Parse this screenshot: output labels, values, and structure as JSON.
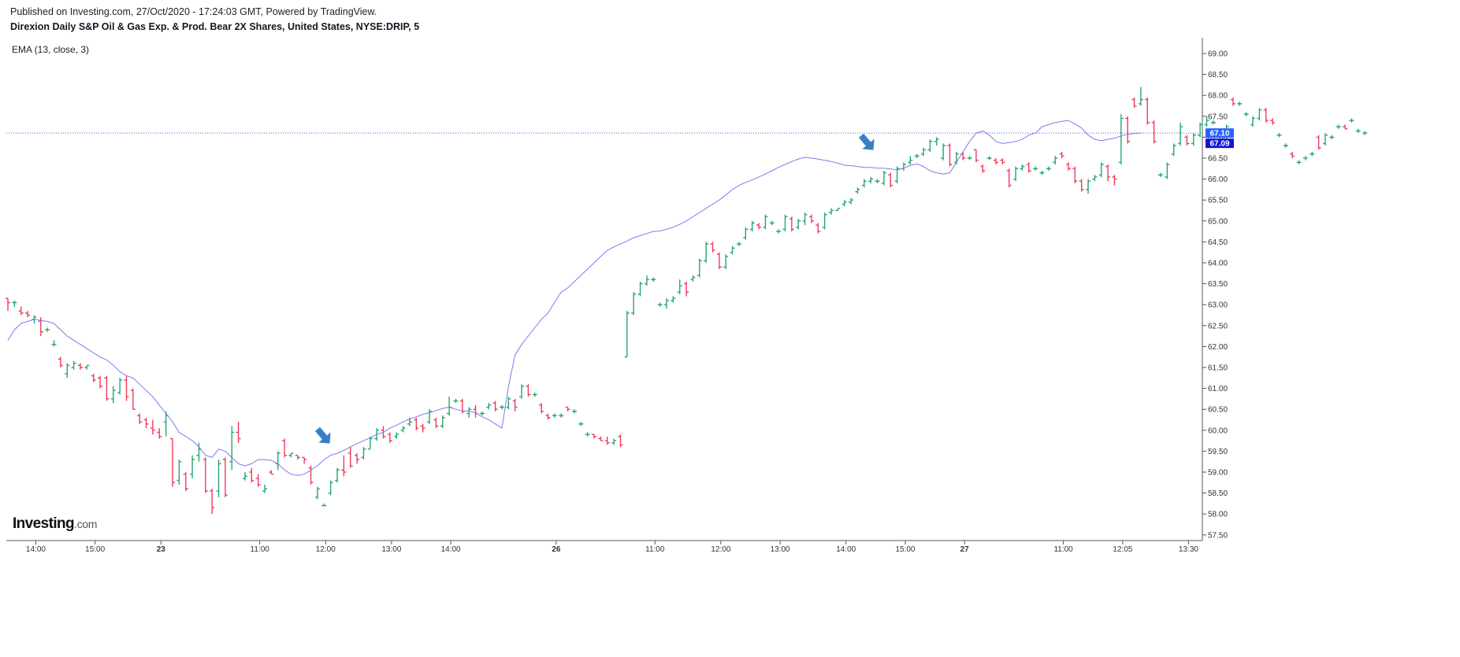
{
  "header": {
    "published": "Published on Investing.com, 27/Oct/2020 - 17:24:03 GMT, Powered by TradingView.",
    "symbol": "Direxion Daily S&P Oil & Gas Exp. & Prod. Bear 2X Shares, United States, NYSE:DRIP, 5"
  },
  "indicator_label": "EMA (13, close, 3)",
  "logo": {
    "main": "Investing",
    "domain": ".com"
  },
  "colors": {
    "up": "#26a672",
    "down": "#ef3b5a",
    "ema": "#7b7bef",
    "price_line": "#2962ff",
    "badge_last": "#2962ff",
    "badge_ema": "#1515d0",
    "axis": "#555555"
  },
  "price_badges": {
    "last": "67.10",
    "ema": "67.09"
  },
  "chart_data": {
    "type": "ohlc",
    "ylim": [
      57.5,
      69.0
    ],
    "y_ticks": [
      "69.00",
      "68.50",
      "68.00",
      "67.50",
      "67.00",
      "66.50",
      "66.00",
      "65.50",
      "65.00",
      "64.50",
      "64.00",
      "63.50",
      "63.00",
      "62.50",
      "62.00",
      "61.50",
      "61.00",
      "60.50",
      "60.00",
      "59.50",
      "59.00",
      "58.50",
      "58.00",
      "57.50"
    ],
    "x_ticks": [
      {
        "label": "14:00",
        "bar": 4
      },
      {
        "label": "15:00",
        "bar": 13
      },
      {
        "label": "23",
        "bar": 23,
        "bold": true
      },
      {
        "label": "11:00",
        "bar": 38
      },
      {
        "label": "12:00",
        "bar": 48
      },
      {
        "label": "13:00",
        "bar": 58
      },
      {
        "label": "14:00",
        "bar": 67
      },
      {
        "label": "26",
        "bar": 83,
        "bold": true
      },
      {
        "label": "11:00",
        "bar": 98
      },
      {
        "label": "12:00",
        "bar": 108
      },
      {
        "label": "13:00",
        "bar": 117
      },
      {
        "label": "14:00",
        "bar": 127
      },
      {
        "label": "15:00",
        "bar": 136
      },
      {
        "label": "27",
        "bar": 145,
        "bold": true
      },
      {
        "label": "11:00",
        "bar": 160
      },
      {
        "label": "12:05",
        "bar": 169
      },
      {
        "label": "13:30",
        "bar": 179
      }
    ],
    "bars": [
      [
        63.15,
        63.15,
        62.85,
        63.05
      ],
      [
        63.05,
        63.1,
        62.95,
        63.05
      ],
      [
        62.85,
        62.95,
        62.75,
        62.8
      ],
      [
        62.8,
        62.85,
        62.7,
        62.75
      ],
      [
        62.65,
        62.75,
        62.55,
        62.7
      ],
      [
        62.6,
        62.7,
        62.25,
        62.35
      ],
      [
        62.4,
        62.45,
        62.35,
        62.4
      ],
      [
        62.05,
        62.15,
        62.0,
        62.05
      ],
      [
        61.7,
        61.75,
        61.5,
        61.55
      ],
      [
        61.35,
        61.6,
        61.25,
        61.55
      ],
      [
        61.5,
        61.65,
        61.45,
        61.6
      ],
      [
        61.55,
        61.6,
        61.45,
        61.5
      ],
      [
        61.5,
        61.55,
        61.45,
        61.55
      ],
      [
        61.3,
        61.35,
        61.15,
        61.2
      ],
      [
        61.25,
        61.3,
        61.0,
        61.05
      ],
      [
        61.25,
        61.3,
        60.7,
        60.75
      ],
      [
        60.75,
        61.05,
        60.65,
        60.95
      ],
      [
        60.9,
        61.25,
        60.85,
        61.2
      ],
      [
        61.2,
        61.3,
        60.7,
        60.8
      ],
      [
        60.95,
        61.0,
        60.5,
        60.5
      ],
      [
        60.35,
        60.4,
        60.15,
        60.2
      ],
      [
        60.25,
        60.3,
        60.05,
        60.15
      ],
      [
        60.05,
        60.25,
        59.9,
        60.0
      ],
      [
        59.95,
        60.05,
        59.8,
        59.85
      ],
      [
        60.2,
        60.45,
        59.85,
        60.35
      ],
      [
        59.8,
        59.8,
        58.65,
        58.75
      ],
      [
        58.8,
        59.3,
        58.7,
        59.25
      ],
      [
        58.95,
        59.0,
        58.55,
        58.6
      ],
      [
        58.95,
        59.4,
        58.85,
        59.3
      ],
      [
        59.4,
        59.7,
        59.25,
        59.55
      ],
      [
        59.3,
        59.35,
        58.5,
        58.55
      ],
      [
        58.55,
        58.6,
        58.0,
        58.15
      ],
      [
        58.55,
        59.3,
        58.4,
        59.2
      ],
      [
        59.3,
        59.35,
        58.4,
        58.45
      ],
      [
        59.25,
        60.1,
        59.05,
        59.95
      ],
      [
        59.95,
        60.2,
        59.7,
        59.8
      ],
      [
        58.85,
        59.0,
        58.8,
        58.9
      ],
      [
        59.0,
        59.1,
        58.75,
        58.8
      ],
      [
        58.85,
        58.95,
        58.65,
        58.7
      ],
      [
        58.55,
        58.7,
        58.5,
        58.6
      ],
      [
        59.0,
        59.05,
        58.95,
        58.95
      ],
      [
        59.2,
        59.5,
        59.05,
        59.45
      ],
      [
        59.75,
        59.8,
        59.35,
        59.4
      ],
      [
        59.4,
        59.45,
        59.35,
        59.45
      ],
      [
        59.4,
        59.4,
        59.3,
        59.35
      ],
      [
        59.35,
        59.35,
        59.2,
        59.3
      ],
      [
        59.1,
        59.15,
        58.7,
        58.75
      ],
      [
        58.4,
        58.65,
        58.35,
        58.6
      ],
      [
        58.2,
        58.25,
        58.2,
        58.2
      ],
      [
        58.5,
        58.8,
        58.45,
        58.75
      ],
      [
        58.8,
        59.1,
        58.75,
        59.05
      ],
      [
        59.05,
        59.4,
        58.9,
        59.0
      ],
      [
        59.45,
        59.6,
        59.1,
        59.15
      ],
      [
        59.4,
        59.45,
        59.2,
        59.3
      ],
      [
        59.35,
        59.6,
        59.3,
        59.55
      ],
      [
        59.55,
        59.85,
        59.55,
        59.8
      ],
      [
        59.8,
        60.05,
        59.75,
        60.0
      ],
      [
        60.0,
        60.1,
        59.8,
        59.85
      ],
      [
        59.9,
        59.95,
        59.7,
        59.75
      ],
      [
        59.85,
        59.95,
        59.8,
        59.9
      ],
      [
        60.0,
        60.1,
        59.95,
        60.05
      ],
      [
        60.15,
        60.3,
        60.1,
        60.2
      ],
      [
        60.25,
        60.3,
        60.0,
        60.05
      ],
      [
        60.1,
        60.15,
        59.95,
        60.05
      ],
      [
        60.2,
        60.5,
        60.15,
        60.45
      ],
      [
        60.25,
        60.3,
        60.05,
        60.1
      ],
      [
        60.1,
        60.35,
        60.05,
        60.3
      ],
      [
        60.4,
        60.8,
        60.35,
        60.55
      ],
      [
        60.7,
        60.75,
        60.65,
        60.7
      ],
      [
        60.7,
        60.75,
        60.4,
        60.45
      ],
      [
        60.4,
        60.55,
        60.3,
        60.5
      ],
      [
        60.5,
        60.6,
        60.3,
        60.4
      ],
      [
        60.4,
        60.45,
        60.35,
        60.4
      ],
      [
        60.55,
        60.65,
        60.5,
        60.6
      ],
      [
        60.65,
        60.7,
        60.45,
        60.5
      ],
      [
        60.55,
        60.6,
        60.5,
        60.55
      ],
      [
        60.55,
        60.8,
        60.5,
        60.75
      ],
      [
        60.7,
        60.75,
        60.45,
        60.55
      ],
      [
        60.8,
        61.1,
        60.75,
        61.05
      ],
      [
        61.05,
        61.1,
        60.8,
        60.85
      ],
      [
        60.85,
        60.9,
        60.8,
        60.85
      ],
      [
        60.6,
        60.65,
        60.4,
        60.45
      ],
      [
        60.35,
        60.4,
        60.25,
        60.3
      ],
      [
        60.35,
        60.4,
        60.3,
        60.35
      ],
      [
        60.35,
        60.4,
        60.3,
        60.35
      ],
      [
        60.55,
        60.55,
        60.45,
        60.5
      ],
      [
        60.45,
        60.5,
        60.4,
        60.45
      ],
      [
        60.15,
        60.2,
        60.1,
        60.15
      ],
      [
        59.9,
        59.95,
        59.85,
        59.9
      ],
      [
        59.9,
        59.9,
        59.8,
        59.85
      ],
      [
        59.8,
        59.85,
        59.75,
        59.75
      ],
      [
        59.75,
        59.85,
        59.65,
        59.7
      ],
      [
        59.7,
        59.8,
        59.65,
        59.75
      ],
      [
        59.85,
        59.9,
        59.6,
        59.65
      ]
    ],
    "bars_day26": [
      [
        61.75,
        62.85,
        61.75,
        62.8
      ],
      [
        62.8,
        63.3,
        62.75,
        63.25
      ],
      [
        63.25,
        63.55,
        63.2,
        63.5
      ],
      [
        63.5,
        63.7,
        63.45,
        63.6
      ],
      [
        63.6,
        63.65,
        63.55,
        63.6
      ],
      [
        63.0,
        63.05,
        62.95,
        63.0
      ],
      [
        63.0,
        63.15,
        62.9,
        63.1
      ],
      [
        63.1,
        63.2,
        63.05,
        63.15
      ],
      [
        63.3,
        63.6,
        63.25,
        63.45
      ],
      [
        63.5,
        63.55,
        63.2,
        63.3
      ],
      [
        63.6,
        63.7,
        63.55,
        63.65
      ],
      [
        63.7,
        64.1,
        63.65,
        64.05
      ],
      [
        64.05,
        64.5,
        64.0,
        64.45
      ],
      [
        64.45,
        64.5,
        64.25,
        64.3
      ],
      [
        64.2,
        64.25,
        63.85,
        63.9
      ],
      [
        63.9,
        64.2,
        63.85,
        64.15
      ],
      [
        64.25,
        64.4,
        64.2,
        64.35
      ],
      [
        64.45,
        64.5,
        64.4,
        64.45
      ],
      [
        64.6,
        64.85,
        64.55,
        64.8
      ],
      [
        64.8,
        65.0,
        64.75,
        64.95
      ],
      [
        64.9,
        64.95,
        64.8,
        64.85
      ],
      [
        64.85,
        65.15,
        64.8,
        65.1
      ],
      [
        64.95,
        65.0,
        64.9,
        64.95
      ],
      [
        64.75,
        64.8,
        64.7,
        64.75
      ],
      [
        64.8,
        65.15,
        64.75,
        65.1
      ],
      [
        65.05,
        65.1,
        64.75,
        64.8
      ],
      [
        64.85,
        65.05,
        64.8,
        65.0
      ],
      [
        65.0,
        65.2,
        64.9,
        65.15
      ],
      [
        65.1,
        65.15,
        64.95,
        65.0
      ],
      [
        64.9,
        64.95,
        64.7,
        64.75
      ],
      [
        64.85,
        65.2,
        64.8,
        65.15
      ],
      [
        65.2,
        65.3,
        65.15,
        65.25
      ],
      [
        65.25,
        65.3,
        65.25,
        65.3
      ],
      [
        65.4,
        65.5,
        65.35,
        65.45
      ],
      [
        65.45,
        65.55,
        65.4,
        65.5
      ],
      [
        65.7,
        65.8,
        65.65,
        65.75
      ],
      [
        65.85,
        66.0,
        65.8,
        65.95
      ],
      [
        65.95,
        66.05,
        65.9,
        66.0
      ],
      [
        65.95,
        66.0,
        65.9,
        65.95
      ],
      [
        65.9,
        66.2,
        65.85,
        66.15
      ],
      [
        66.1,
        66.15,
        65.8,
        65.85
      ],
      [
        65.95,
        66.3,
        65.9,
        66.25
      ],
      [
        66.25,
        66.4,
        66.2,
        66.35
      ],
      [
        66.4,
        66.55,
        66.35,
        66.45
      ],
      [
        66.55,
        66.6,
        66.5,
        66.55
      ],
      [
        66.6,
        66.75,
        66.55,
        66.7
      ],
      [
        66.7,
        66.95,
        66.65,
        66.9
      ],
      [
        66.9,
        67.0,
        66.8,
        66.95
      ],
      [
        66.5,
        66.85,
        66.45,
        66.8
      ],
      [
        66.8,
        66.85,
        66.3,
        66.35
      ],
      [
        66.4,
        66.65,
        66.35,
        66.6
      ],
      [
        66.6,
        66.65,
        66.45,
        66.5
      ],
      [
        66.5,
        66.55,
        66.45,
        66.5
      ],
      [
        66.7,
        66.7,
        66.4,
        66.45
      ],
      [
        66.3,
        66.35,
        66.15,
        66.2
      ],
      [
        66.5,
        66.55,
        66.45,
        66.5
      ],
      [
        66.45,
        66.5,
        66.35,
        66.4
      ]
    ],
    "bars_after": [
      [
        66.45,
        66.5,
        66.35,
        66.4
      ],
      [
        66.2,
        66.25,
        65.8,
        65.85
      ],
      [
        66.0,
        66.3,
        65.95,
        66.25
      ],
      [
        66.25,
        66.35,
        66.2,
        66.3
      ],
      [
        66.35,
        66.4,
        66.15,
        66.2
      ],
      [
        66.25,
        66.3,
        66.2,
        66.25
      ],
      [
        66.15,
        66.2,
        66.1,
        66.15
      ],
      [
        66.25,
        66.3,
        66.2,
        66.25
      ],
      [
        66.4,
        66.55,
        66.35,
        66.5
      ],
      [
        66.6,
        66.65,
        66.5,
        66.55
      ],
      [
        66.35,
        66.4,
        66.2,
        66.25
      ],
      [
        66.25,
        66.3,
        65.9,
        65.95
      ],
      [
        65.95,
        66.0,
        65.7,
        65.75
      ],
      [
        65.75,
        66.0,
        65.65,
        65.95
      ],
      [
        66.0,
        66.1,
        65.95,
        66.05
      ],
      [
        66.1,
        66.4,
        66.05,
        66.35
      ],
      [
        66.3,
        66.35,
        65.95,
        66.05
      ],
      [
        66.05,
        66.1,
        65.85,
        66.0
      ],
      [
        66.4,
        67.55,
        66.35,
        67.45
      ],
      [
        67.45,
        67.5,
        66.85,
        66.9
      ],
      [
        67.9,
        67.95,
        67.7,
        67.75
      ],
      [
        67.8,
        68.2,
        67.75,
        67.9
      ],
      [
        67.9,
        67.95,
        67.3,
        67.35
      ],
      [
        67.35,
        67.4,
        66.85,
        66.9
      ],
      [
        66.1,
        66.15,
        66.05,
        66.1
      ],
      [
        66.05,
        66.4,
        66.0,
        66.35
      ],
      [
        66.6,
        66.85,
        66.55,
        66.8
      ],
      [
        66.85,
        67.35,
        66.8,
        67.25
      ],
      [
        67.0,
        67.05,
        66.8,
        66.85
      ],
      [
        66.85,
        67.1,
        66.8,
        67.05
      ],
      [
        67.05,
        67.35,
        67.0,
        67.3
      ],
      [
        67.3,
        67.5,
        67.25,
        67.4
      ],
      [
        67.35,
        67.4,
        67.3,
        67.35
      ],
      [
        67.0,
        67.05,
        66.8,
        66.85
      ],
      [
        66.9,
        67.3,
        66.85,
        67.25
      ],
      [
        67.9,
        67.95,
        67.75,
        67.8
      ],
      [
        67.8,
        67.85,
        67.75,
        67.8
      ],
      [
        67.55,
        67.6,
        67.5,
        67.55
      ],
      [
        67.3,
        67.5,
        67.25,
        67.45
      ],
      [
        67.45,
        67.7,
        67.4,
        67.65
      ],
      [
        67.65,
        67.7,
        67.35,
        67.4
      ],
      [
        67.4,
        67.45,
        67.3,
        67.35
      ],
      [
        67.05,
        67.1,
        67.0,
        67.05
      ],
      [
        66.8,
        66.85,
        66.75,
        66.8
      ],
      [
        66.6,
        66.65,
        66.5,
        66.55
      ],
      [
        66.4,
        66.45,
        66.35,
        66.4
      ],
      [
        66.5,
        66.55,
        66.45,
        66.5
      ],
      [
        66.6,
        66.65,
        66.55,
        66.6
      ],
      [
        67.0,
        67.05,
        66.7,
        66.75
      ],
      [
        66.85,
        67.1,
        66.8,
        67.05
      ],
      [
        67.0,
        67.05,
        66.95,
        67.0
      ],
      [
        67.25,
        67.3,
        67.2,
        67.25
      ],
      [
        67.25,
        67.3,
        67.2,
        67.2
      ],
      [
        67.4,
        67.45,
        67.35,
        67.4
      ],
      [
        67.15,
        67.2,
        67.1,
        67.15
      ],
      [
        67.1,
        67.15,
        67.05,
        67.1
      ]
    ],
    "ema": [
      62.15,
      62.4,
      62.55,
      62.6,
      62.65,
      62.62,
      62.6,
      62.55,
      62.4,
      62.25,
      62.15,
      62.05,
      61.95,
      61.85,
      61.75,
      61.68,
      61.55,
      61.4,
      61.3,
      61.25,
      61.1,
      60.95,
      60.8,
      60.6,
      60.4,
      60.2,
      59.95,
      59.85,
      59.75,
      59.6,
      59.4,
      59.35,
      59.55,
      59.5,
      59.35,
      59.2,
      59.15,
      59.2,
      59.3,
      59.3,
      59.28,
      59.2,
      59.05,
      58.95,
      58.92,
      58.95,
      59.05,
      59.15,
      59.3,
      59.4,
      59.45,
      59.52,
      59.6,
      59.68,
      59.75,
      59.82,
      59.9,
      59.95,
      60.05,
      60.12,
      60.2,
      60.27,
      60.32,
      60.38,
      60.42,
      60.47,
      60.52,
      60.55,
      60.5,
      60.46,
      60.46,
      60.42,
      60.32,
      60.25,
      60.15,
      60.05,
      61.05,
      61.8,
      62.05,
      62.25,
      62.45,
      62.65,
      62.8,
      63.05,
      63.3,
      63.4,
      63.55,
      63.7,
      63.85,
      64.0,
      64.15,
      64.3,
      64.38,
      64.45,
      64.52,
      64.6,
      64.65,
      64.7,
      64.75,
      64.76,
      64.8,
      64.85,
      64.92,
      65.0,
      65.1,
      65.2,
      65.3,
      65.4,
      65.5,
      65.62,
      65.75,
      65.85,
      65.92,
      65.98,
      66.05,
      66.12,
      66.2,
      66.28,
      66.35,
      66.42,
      66.48,
      66.52,
      66.5,
      66.48,
      66.45,
      66.42,
      66.38,
      66.33,
      66.32,
      66.3,
      66.28,
      66.28,
      66.26,
      66.26,
      66.24,
      66.22,
      66.26,
      66.33,
      66.36,
      66.3,
      66.2,
      66.15,
      66.12,
      66.15,
      66.4,
      66.65,
      66.9,
      67.1,
      67.15,
      67.05,
      66.9,
      66.85,
      66.87,
      66.9,
      66.95,
      67.05,
      67.1,
      67.25,
      67.3,
      67.35,
      67.38,
      67.4,
      67.32,
      67.22,
      67.05,
      66.95,
      66.92,
      66.95,
      66.98,
      67.03,
      67.07,
      67.09,
      67.1
    ]
  }
}
